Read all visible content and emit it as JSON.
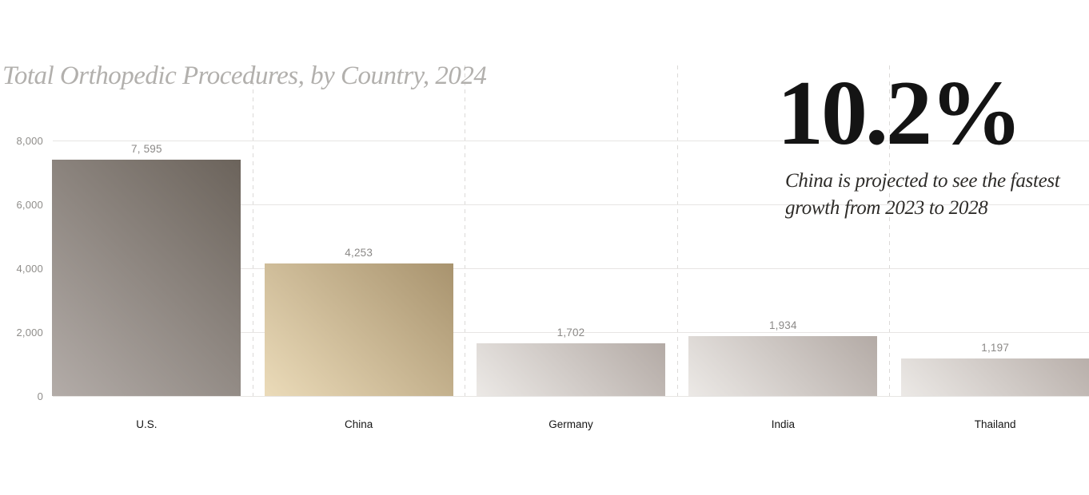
{
  "chart_data": {
    "type": "bar",
    "title": "Total Orthopedic Procedures, by Country, 2024",
    "categories": [
      "U.S.",
      "China",
      "Germany",
      "India",
      "Thailand"
    ],
    "values": [
      7595,
      4253,
      1702,
      1934,
      1197
    ],
    "value_labels": [
      "7, 595",
      "4,253",
      "1,702",
      "1,934",
      "1,197"
    ],
    "xlabel": "",
    "ylabel": "",
    "ylim": [
      0,
      8000
    ],
    "y_ticks": [
      {
        "value": 0,
        "label": "0"
      },
      {
        "value": 2000,
        "label": "2,000"
      },
      {
        "value": 4000,
        "label": "4,000"
      },
      {
        "value": 6000,
        "label": "6,000"
      },
      {
        "value": 8000,
        "label": "8,000"
      }
    ],
    "grid": {
      "horizontal": "solid",
      "vertical": "dashed",
      "legend": "none"
    },
    "bar_gradients": [
      [
        "#6b635b",
        "#b3aca8"
      ],
      [
        "#a8936e",
        "#ebdbb9"
      ],
      [
        "#b3aaa5",
        "#ece9e6"
      ],
      [
        "#b3aaa5",
        "#ece9e6"
      ],
      [
        "#b8afaa",
        "#ece9e6"
      ]
    ]
  },
  "callout": {
    "stat": "10.2%",
    "description": "China is projected to see the fastest growth from 2023 to 2028"
  },
  "colors": {
    "background": "#ffffff",
    "title_text": "#b2b0ad",
    "axis_text": "#8f8d8a",
    "value_label_text": "#8b8987",
    "category_text": "#161616",
    "gridline": "#e7e5e3",
    "dashed_gridline": "#dcdad8",
    "stat_text": "#141414",
    "description_text": "#2e2c29"
  }
}
